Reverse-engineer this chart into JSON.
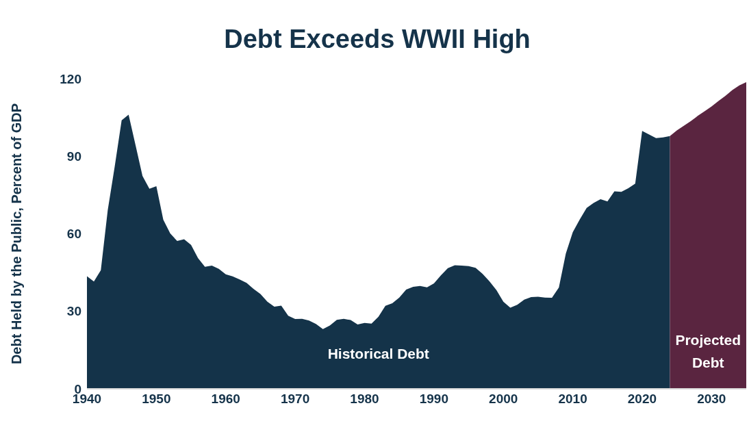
{
  "chart_data": {
    "type": "area",
    "title": "Debt Exceeds WWII High",
    "ylabel": "Debt Held by the Public, Percent of GDP",
    "xlim": [
      1940,
      2035
    ],
    "xticks": [
      1940,
      1950,
      1960,
      1970,
      1980,
      1990,
      2000,
      2010,
      2020,
      2030
    ],
    "ylim": [
      0,
      120
    ],
    "yticks": [
      0,
      30,
      60,
      90,
      120
    ],
    "grid": false,
    "legend": false,
    "series": [
      {
        "name": "Historical Debt",
        "color": "#143349",
        "x": [
          1940,
          1941,
          1942,
          1943,
          1944,
          1945,
          1946,
          1947,
          1948,
          1949,
          1950,
          1951,
          1952,
          1953,
          1954,
          1955,
          1956,
          1957,
          1958,
          1959,
          1960,
          1961,
          1962,
          1963,
          1964,
          1965,
          1966,
          1967,
          1968,
          1969,
          1970,
          1971,
          1972,
          1973,
          1974,
          1975,
          1976,
          1977,
          1978,
          1979,
          1980,
          1981,
          1982,
          1983,
          1984,
          1985,
          1986,
          1987,
          1988,
          1989,
          1990,
          1991,
          1992,
          1993,
          1994,
          1995,
          1996,
          1997,
          1998,
          1999,
          2000,
          2001,
          2002,
          2003,
          2004,
          2005,
          2006,
          2007,
          2008,
          2009,
          2010,
          2011,
          2012,
          2013,
          2014,
          2015,
          2016,
          2017,
          2018,
          2019,
          2020,
          2021,
          2022,
          2023,
          2024
        ],
        "values": [
          43.6,
          41.5,
          45.9,
          69.2,
          86.0,
          103.9,
          106.1,
          94.3,
          82.4,
          77.4,
          78.4,
          65.4,
          60.1,
          57.2,
          57.9,
          55.7,
          50.6,
          47.2,
          47.7,
          46.4,
          44.3,
          43.5,
          42.3,
          41.0,
          38.7,
          36.7,
          33.7,
          31.8,
          32.2,
          28.3,
          27.0,
          27.1,
          26.4,
          25.1,
          23.1,
          24.5,
          26.7,
          27.1,
          26.6,
          24.9,
          25.5,
          25.2,
          27.9,
          32.1,
          33.1,
          35.3,
          38.4,
          39.5,
          39.8,
          39.3,
          40.8,
          43.9,
          46.7,
          47.8,
          47.7,
          47.5,
          46.8,
          44.5,
          41.6,
          38.2,
          33.7,
          31.4,
          32.5,
          34.5,
          35.5,
          35.6,
          35.3,
          35.2,
          39.2,
          52.3,
          60.6,
          65.5,
          70.0,
          71.9,
          73.4,
          72.5,
          76.4,
          76.2,
          77.6,
          79.4,
          99.8,
          98.4,
          97.0,
          97.3,
          97.8
        ]
      },
      {
        "name": "Projected Debt",
        "color": "#5a2540",
        "x": [
          2024,
          2025,
          2026,
          2027,
          2028,
          2029,
          2030,
          2031,
          2032,
          2033,
          2034,
          2035
        ],
        "values": [
          97.8,
          100.0,
          101.8,
          103.6,
          105.6,
          107.4,
          109.3,
          111.4,
          113.4,
          115.6,
          117.4,
          118.7
        ]
      }
    ]
  }
}
